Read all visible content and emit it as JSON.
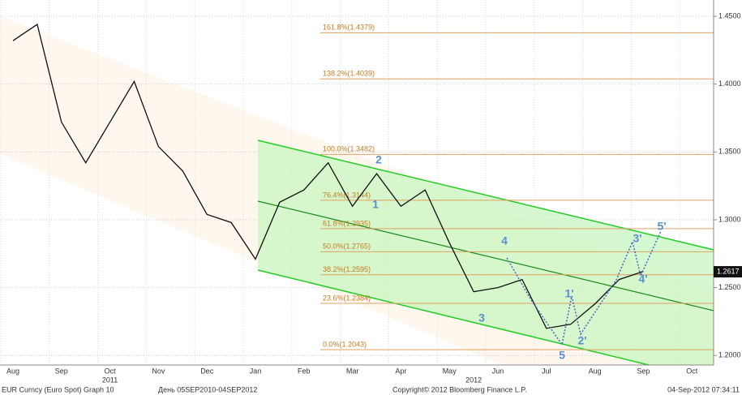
{
  "chart_data": {
    "type": "line",
    "categories": [
      "Aug",
      null,
      "Sep",
      null,
      "Oct",
      null,
      "Nov",
      null,
      "Dec",
      null,
      "Jan",
      null,
      "Feb",
      null,
      "Mar",
      null,
      "Apr",
      null,
      "May",
      null,
      "Jun",
      null,
      "Jul",
      null,
      "Aug",
      null,
      "Sep",
      null,
      "Oct"
    ],
    "year_labels": [
      {
        "index": 4,
        "label": "2011"
      },
      {
        "index": 19,
        "label": "2012"
      }
    ],
    "series": [
      {
        "name": "EUR Curncy",
        "color": "#111111",
        "values": [
          1.432,
          1.444,
          1.372,
          1.342,
          1.372,
          1.402,
          1.354,
          1.336,
          1.304,
          1.298,
          1.271,
          1.313,
          1.322,
          1.342,
          1.31,
          1.334,
          1.31,
          1.322,
          1.283,
          1.247,
          1.25,
          1.256,
          1.22,
          1.223,
          1.238,
          1.256,
          1.262,
          null,
          null
        ]
      }
    ],
    "ylim": [
      1.193,
      1.462
    ],
    "yticks": [
      {
        "value": 1.2,
        "label": "1.2000"
      },
      {
        "value": 1.25,
        "label": "1.2500"
      },
      {
        "value": 1.3,
        "label": "1.3000"
      },
      {
        "value": 1.35,
        "label": "1.3500"
      },
      {
        "value": 1.4,
        "label": "1.4000"
      },
      {
        "value": 1.45,
        "label": "1.4500"
      }
    ],
    "grid": true,
    "last_price": 1.2617,
    "fib_levels": [
      {
        "value": 1.4379,
        "label": "161.8%(1.4379)"
      },
      {
        "value": 1.4039,
        "label": "138.2%(1.4039)"
      },
      {
        "value": 1.3482,
        "label": "100.0%(1.3482)"
      },
      {
        "value": 1.3144,
        "label": "76.4%(1.3144)"
      },
      {
        "value": 1.2935,
        "label": "61.8%(1.2935)"
      },
      {
        "value": 1.2765,
        "label": "50.0%(1.2765)"
      },
      {
        "value": 1.2595,
        "label": "38.2%(1.2595)"
      },
      {
        "value": 1.2384,
        "label": "23.6%(1.2384)"
      },
      {
        "value": 1.2043,
        "label": "0.0%(1.2043)"
      }
    ],
    "waves": [
      "1",
      "2",
      "3",
      "4",
      "5",
      "1'",
      "2'",
      "3'",
      "4'",
      "5'"
    ],
    "footer": {
      "security": "EUR Curncy (Euro Spot) Graph 10",
      "period": "День 05SEP2010-04SEP2012",
      "copyright": "Copyright© 2012 Bloomberg Finance L.P.",
      "timestamp": "04-Sep-2012 07:34:11"
    }
  }
}
